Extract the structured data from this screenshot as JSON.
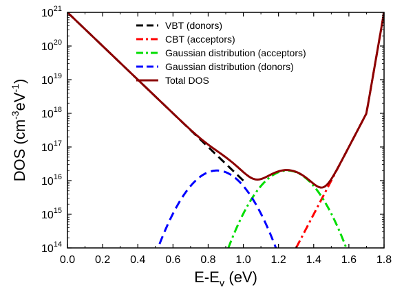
{
  "chart_data": {
    "type": "line",
    "xlabel": {
      "base": "E-E",
      "sub": "v",
      "rest": " (eV)"
    },
    "ylabel": {
      "base": "DOS  (cm",
      "sup1": "-3",
      "mid": "eV",
      "sup2": "-1",
      "end": ")"
    },
    "xlim": [
      0.0,
      1.8
    ],
    "ylim_log10": [
      14,
      21
    ],
    "y_scale": "log",
    "x_ticks": [
      "0.0",
      "0.2",
      "0.4",
      "0.6",
      "0.8",
      "1.0",
      "1.2",
      "1.4",
      "1.6",
      "1.8"
    ],
    "y_ticks": [
      {
        "base": "10",
        "exp": "14"
      },
      {
        "base": "10",
        "exp": "15"
      },
      {
        "base": "10",
        "exp": "16"
      },
      {
        "base": "10",
        "exp": "17"
      },
      {
        "base": "10",
        "exp": "18"
      },
      {
        "base": "10",
        "exp": "19"
      },
      {
        "base": "10",
        "exp": "20"
      },
      {
        "base": "10",
        "exp": "21"
      }
    ],
    "legend_position": "top-center",
    "series": [
      {
        "name": "VBT (donors)",
        "color": "#000000",
        "style": "dash",
        "x": [
          0.0,
          0.2,
          0.4,
          0.6,
          0.8,
          1.0
        ],
        "y": [
          1e+21,
          1e+20,
          1e+19,
          1e+18,
          1e+17,
          1e+16
        ]
      },
      {
        "name": "CBT (acceptors)",
        "color": "#ff0000",
        "style": "dashdot",
        "x": [
          1.3,
          1.4,
          1.5,
          1.6,
          1.7,
          1.8
        ],
        "y": [
          100000000000000.0,
          1000000000000000.0,
          1e+16,
          1e+17,
          1e+18,
          1e+21
        ]
      },
      {
        "name": "Gaussian distribution (acceptors)",
        "color": "#00dd00",
        "style": "dashdot",
        "x": [
          0.85,
          0.95,
          1.05,
          1.15,
          1.25,
          1.35,
          1.45,
          1.55,
          1.65
        ],
        "y": [
          100000000000000.0,
          1400000000000000.0,
          7500000000000000.0,
          1.6e+16,
          2e+16,
          1.6e+16,
          7500000000000000.0,
          1400000000000000.0,
          100000000000000.0
        ]
      },
      {
        "name": "Gaussian distribution (donors)",
        "color": "#0000ff",
        "style": "dash",
        "x": [
          0.45,
          0.55,
          0.65,
          0.75,
          0.85,
          0.95,
          1.05,
          1.15,
          1.25
        ],
        "y": [
          100000000000000.0,
          1400000000000000.0,
          7500000000000000.0,
          1.6e+16,
          2e+16,
          1.6e+16,
          7500000000000000.0,
          1400000000000000.0,
          100000000000000.0
        ]
      },
      {
        "name": "Total DOS",
        "color": "#8b0000",
        "style": "solid",
        "x": [
          0.0,
          0.2,
          0.4,
          0.6,
          0.7,
          0.85,
          1.05,
          1.25,
          1.42,
          1.5,
          1.6,
          1.7,
          1.8
        ],
        "y": [
          1e+21,
          1e+20,
          1e+19,
          1e+18,
          1.6e+16,
          2e+16,
          1e+16,
          2e+16,
          1e+16,
          1e+17,
          1e+18,
          1e+19,
          1e+21
        ]
      }
    ]
  }
}
